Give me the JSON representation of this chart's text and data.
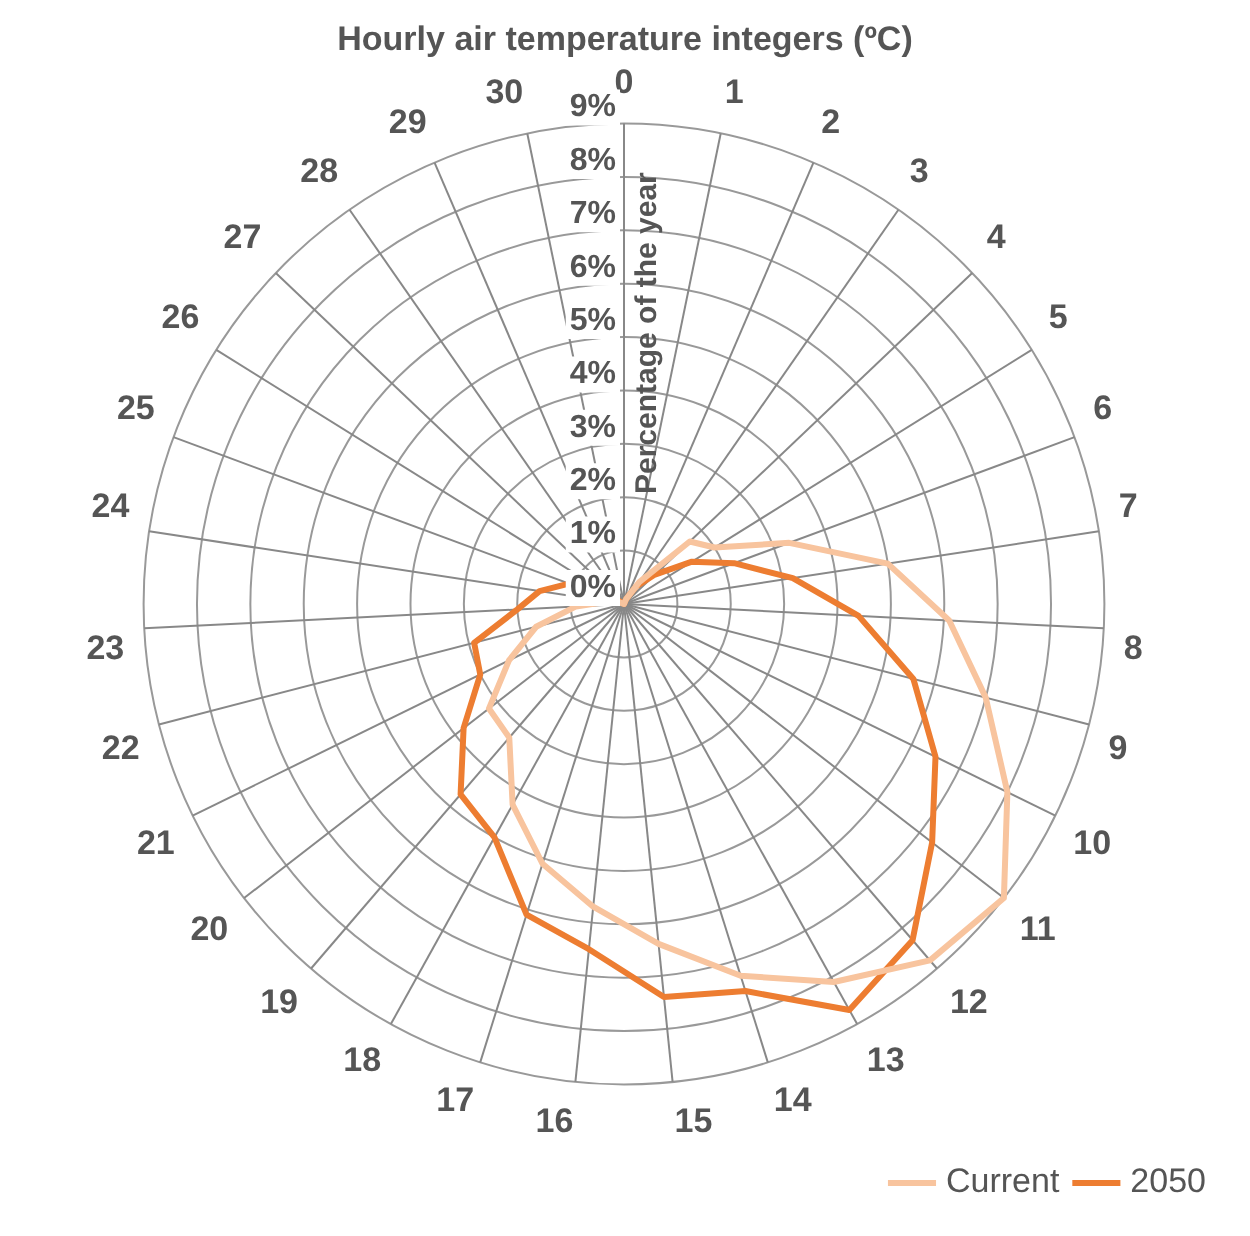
{
  "chart_data": {
    "type": "radar",
    "title": "Hourly air temperature integers (ºC)",
    "ylabel": "Percentage of the year",
    "categories": [
      "0",
      "1",
      "2",
      "3",
      "4",
      "5",
      "6",
      "7",
      "8",
      "9",
      "10",
      "11",
      "12",
      "13",
      "14",
      "15",
      "16",
      "17",
      "18",
      "19",
      "20",
      "21",
      "22",
      "23",
      "24",
      "25",
      "26",
      "27",
      "28",
      "29",
      "30"
    ],
    "series": [
      {
        "name": "Current",
        "color": "#f8c49e",
        "values": [
          0,
          0,
          0.1,
          0.5,
          1.7,
          2.0,
          3.3,
          5.0,
          6.1,
          7.0,
          8.0,
          9.0,
          8.8,
          8.1,
          7.3,
          6.4,
          5.7,
          5.1,
          4.3,
          3.3,
          3.2,
          2.4,
          1.7,
          0.9,
          0.3,
          0.1,
          0,
          0,
          0,
          0,
          0
        ]
      },
      {
        "name": "2050",
        "color": "#ed7d31",
        "values": [
          0,
          0,
          0.1,
          0.4,
          0.8,
          1.5,
          2.2,
          3.2,
          4.4,
          5.6,
          6.5,
          7.3,
          8.3,
          8.7,
          7.6,
          7.4,
          6.5,
          6.1,
          5.0,
          4.7,
          3.8,
          3.0,
          2.9,
          2.0,
          1.6,
          1.1,
          0.3,
          0,
          0,
          0,
          0
        ]
      }
    ],
    "ylim": [
      0,
      9
    ],
    "yticks": [
      {
        "value": 0,
        "label": "0%"
      },
      {
        "value": 1,
        "label": "1%"
      },
      {
        "value": 2,
        "label": "2%"
      },
      {
        "value": 3,
        "label": "3%"
      },
      {
        "value": 4,
        "label": "4%"
      },
      {
        "value": 5,
        "label": "5%"
      },
      {
        "value": 6,
        "label": "6%"
      },
      {
        "value": 7,
        "label": "7%"
      },
      {
        "value": 8,
        "label": "8%"
      },
      {
        "value": 9,
        "label": "9%"
      }
    ],
    "grid": true,
    "legend": "bottom right",
    "marker": "none",
    "line_style": "solid"
  }
}
